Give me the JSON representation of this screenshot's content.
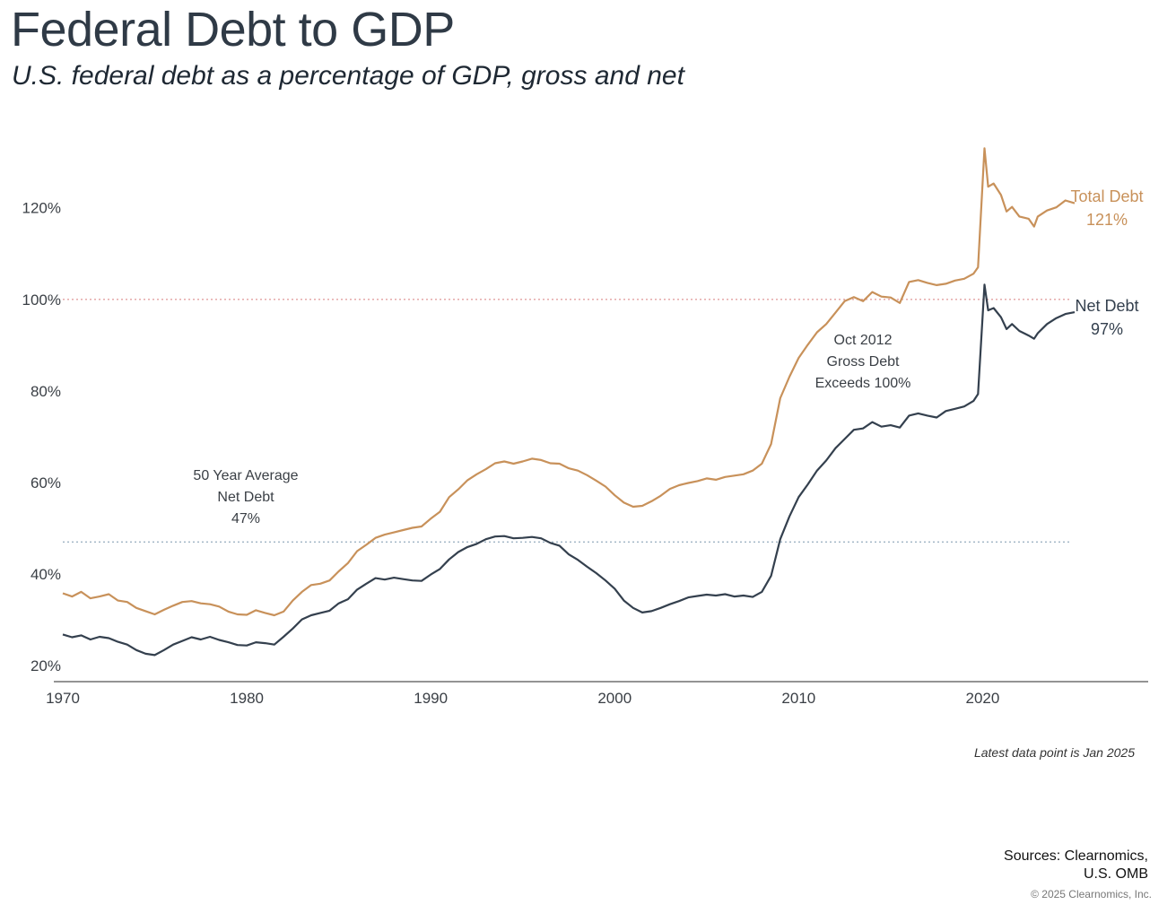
{
  "title": "Federal Debt to GDP",
  "subtitle": "U.S. federal debt as a percentage of GDP, gross and net",
  "note": "Latest data point is Jan 2025",
  "sources_line1": "Sources: Clearnomics,",
  "sources_line2": "U.S. OMB",
  "copyright": "© 2025 Clearnomics, Inc.",
  "colors": {
    "total": "#c8915a",
    "net": "#34404e",
    "ref_100": "#e3a0a0",
    "ref_avg": "#9fb3c4",
    "axis": "#555555"
  },
  "chart_data": {
    "type": "line",
    "xlim": [
      1970,
      2029
    ],
    "ylim": [
      16.5,
      136
    ],
    "x_ticks": [
      1970,
      1980,
      1990,
      2000,
      2010,
      2020
    ],
    "y_ticks": [
      20,
      40,
      60,
      80,
      100,
      120
    ],
    "y_tick_labels": [
      "20%",
      "40%",
      "60%",
      "80%",
      "100%",
      "120%"
    ],
    "reference_lines": [
      {
        "y": 100,
        "style": "dotted",
        "color": "#e3a0a0"
      },
      {
        "y": 47,
        "style": "dotted",
        "color": "#9fb3c4"
      }
    ],
    "series": [
      {
        "name": "Total Debt",
        "end_label": "121%",
        "color": "#c8915a",
        "points": [
          [
            1970,
            35.8
          ],
          [
            1970.5,
            35.1
          ],
          [
            1971,
            36.1
          ],
          [
            1971.5,
            34.7
          ],
          [
            1972,
            35.1
          ],
          [
            1972.5,
            35.6
          ],
          [
            1973,
            34.2
          ],
          [
            1973.5,
            33.9
          ],
          [
            1974,
            32.6
          ],
          [
            1974.5,
            31.9
          ],
          [
            1975,
            31.2
          ],
          [
            1975.5,
            32.2
          ],
          [
            1976,
            33.1
          ],
          [
            1976.5,
            33.9
          ],
          [
            1977,
            34.1
          ],
          [
            1977.5,
            33.6
          ],
          [
            1978,
            33.4
          ],
          [
            1978.5,
            32.9
          ],
          [
            1979,
            31.8
          ],
          [
            1979.5,
            31.2
          ],
          [
            1980,
            31.1
          ],
          [
            1980.5,
            32.1
          ],
          [
            1981,
            31.5
          ],
          [
            1981.5,
            31.0
          ],
          [
            1982,
            31.8
          ],
          [
            1982.5,
            34.2
          ],
          [
            1983,
            36.1
          ],
          [
            1983.5,
            37.6
          ],
          [
            1984,
            37.9
          ],
          [
            1984.5,
            38.6
          ],
          [
            1985,
            40.6
          ],
          [
            1985.5,
            42.4
          ],
          [
            1986,
            45.0
          ],
          [
            1986.5,
            46.4
          ],
          [
            1987,
            47.9
          ],
          [
            1987.5,
            48.6
          ],
          [
            1988,
            49.1
          ],
          [
            1988.5,
            49.6
          ],
          [
            1989,
            50.1
          ],
          [
            1989.5,
            50.4
          ],
          [
            1990,
            52.1
          ],
          [
            1990.5,
            53.6
          ],
          [
            1991,
            56.8
          ],
          [
            1991.5,
            58.5
          ],
          [
            1992,
            60.5
          ],
          [
            1992.5,
            61.8
          ],
          [
            1993,
            62.9
          ],
          [
            1993.5,
            64.2
          ],
          [
            1994,
            64.6
          ],
          [
            1994.5,
            64.1
          ],
          [
            1995,
            64.6
          ],
          [
            1995.5,
            65.2
          ],
          [
            1996,
            64.9
          ],
          [
            1996.5,
            64.2
          ],
          [
            1997,
            64.1
          ],
          [
            1997.5,
            63.1
          ],
          [
            1998,
            62.6
          ],
          [
            1998.5,
            61.6
          ],
          [
            1999,
            60.4
          ],
          [
            1999.5,
            59.1
          ],
          [
            2000,
            57.2
          ],
          [
            2000.5,
            55.6
          ],
          [
            2001,
            54.7
          ],
          [
            2001.5,
            54.9
          ],
          [
            2002,
            55.9
          ],
          [
            2002.5,
            57.1
          ],
          [
            2003,
            58.6
          ],
          [
            2003.5,
            59.4
          ],
          [
            2004,
            59.9
          ],
          [
            2004.5,
            60.3
          ],
          [
            2005,
            60.9
          ],
          [
            2005.5,
            60.6
          ],
          [
            2006,
            61.2
          ],
          [
            2006.5,
            61.5
          ],
          [
            2007,
            61.8
          ],
          [
            2007.5,
            62.6
          ],
          [
            2008,
            64.1
          ],
          [
            2008.5,
            68.4
          ],
          [
            2009,
            78.4
          ],
          [
            2009.5,
            83.1
          ],
          [
            2010,
            87.2
          ],
          [
            2010.5,
            90.1
          ],
          [
            2011,
            92.8
          ],
          [
            2011.5,
            94.6
          ],
          [
            2012,
            97.1
          ],
          [
            2012.5,
            99.6
          ],
          [
            2013,
            100.5
          ],
          [
            2013.5,
            99.6
          ],
          [
            2014,
            101.6
          ],
          [
            2014.5,
            100.6
          ],
          [
            2015,
            100.4
          ],
          [
            2015.5,
            99.2
          ],
          [
            2016,
            103.8
          ],
          [
            2016.5,
            104.2
          ],
          [
            2017,
            103.6
          ],
          [
            2017.5,
            103.1
          ],
          [
            2018,
            103.4
          ],
          [
            2018.5,
            104.1
          ],
          [
            2019,
            104.5
          ],
          [
            2019.5,
            105.6
          ],
          [
            2019.75,
            107.0
          ],
          [
            2020.1,
            133.0
          ],
          [
            2020.3,
            124.6
          ],
          [
            2020.6,
            125.3
          ],
          [
            2021,
            122.8
          ],
          [
            2021.3,
            119.2
          ],
          [
            2021.6,
            120.2
          ],
          [
            2022,
            118.1
          ],
          [
            2022.5,
            117.6
          ],
          [
            2022.8,
            115.9
          ],
          [
            2023,
            118.1
          ],
          [
            2023.5,
            119.4
          ],
          [
            2024,
            120.1
          ],
          [
            2024.5,
            121.6
          ],
          [
            2025,
            121.0
          ]
        ]
      },
      {
        "name": "Net Debt",
        "end_label": "97%",
        "color": "#34404e",
        "points": [
          [
            1970,
            26.8
          ],
          [
            1970.5,
            26.2
          ],
          [
            1971,
            26.6
          ],
          [
            1971.5,
            25.7
          ],
          [
            1972,
            26.3
          ],
          [
            1972.5,
            26.0
          ],
          [
            1973,
            25.2
          ],
          [
            1973.5,
            24.6
          ],
          [
            1974,
            23.4
          ],
          [
            1974.5,
            22.6
          ],
          [
            1975,
            22.3
          ],
          [
            1975.5,
            23.4
          ],
          [
            1976,
            24.6
          ],
          [
            1976.5,
            25.4
          ],
          [
            1977,
            26.2
          ],
          [
            1977.5,
            25.7
          ],
          [
            1978,
            26.3
          ],
          [
            1978.5,
            25.6
          ],
          [
            1979,
            25.1
          ],
          [
            1979.5,
            24.5
          ],
          [
            1980,
            24.4
          ],
          [
            1980.5,
            25.1
          ],
          [
            1981,
            24.9
          ],
          [
            1981.5,
            24.6
          ],
          [
            1982,
            26.3
          ],
          [
            1982.5,
            28.1
          ],
          [
            1983,
            30.1
          ],
          [
            1983.5,
            31.0
          ],
          [
            1984,
            31.5
          ],
          [
            1984.5,
            32.0
          ],
          [
            1985,
            33.6
          ],
          [
            1985.5,
            34.5
          ],
          [
            1986,
            36.6
          ],
          [
            1986.5,
            37.9
          ],
          [
            1987,
            39.1
          ],
          [
            1987.5,
            38.8
          ],
          [
            1988,
            39.2
          ],
          [
            1988.5,
            38.9
          ],
          [
            1989,
            38.6
          ],
          [
            1989.5,
            38.5
          ],
          [
            1990,
            39.9
          ],
          [
            1990.5,
            41.1
          ],
          [
            1991,
            43.2
          ],
          [
            1991.5,
            44.8
          ],
          [
            1992,
            45.9
          ],
          [
            1992.5,
            46.6
          ],
          [
            1993,
            47.6
          ],
          [
            1993.5,
            48.2
          ],
          [
            1994,
            48.3
          ],
          [
            1994.5,
            47.8
          ],
          [
            1995,
            47.9
          ],
          [
            1995.5,
            48.1
          ],
          [
            1996,
            47.8
          ],
          [
            1996.5,
            46.8
          ],
          [
            1997,
            46.2
          ],
          [
            1997.5,
            44.3
          ],
          [
            1998,
            43.1
          ],
          [
            1998.5,
            41.6
          ],
          [
            1999,
            40.2
          ],
          [
            1999.5,
            38.6
          ],
          [
            2000,
            36.8
          ],
          [
            2000.5,
            34.2
          ],
          [
            2001,
            32.6
          ],
          [
            2001.5,
            31.6
          ],
          [
            2002,
            31.9
          ],
          [
            2002.5,
            32.6
          ],
          [
            2003,
            33.4
          ],
          [
            2003.5,
            34.1
          ],
          [
            2004,
            34.9
          ],
          [
            2004.5,
            35.2
          ],
          [
            2005,
            35.5
          ],
          [
            2005.5,
            35.3
          ],
          [
            2006,
            35.6
          ],
          [
            2006.5,
            35.1
          ],
          [
            2007,
            35.3
          ],
          [
            2007.5,
            35.0
          ],
          [
            2008,
            36.1
          ],
          [
            2008.5,
            39.6
          ],
          [
            2009,
            47.6
          ],
          [
            2009.5,
            52.6
          ],
          [
            2010,
            56.8
          ],
          [
            2010.5,
            59.6
          ],
          [
            2011,
            62.6
          ],
          [
            2011.5,
            64.8
          ],
          [
            2012,
            67.5
          ],
          [
            2012.5,
            69.5
          ],
          [
            2013,
            71.5
          ],
          [
            2013.5,
            71.8
          ],
          [
            2014,
            73.2
          ],
          [
            2014.5,
            72.2
          ],
          [
            2015,
            72.5
          ],
          [
            2015.5,
            72.0
          ],
          [
            2016,
            74.6
          ],
          [
            2016.5,
            75.1
          ],
          [
            2017,
            74.6
          ],
          [
            2017.5,
            74.2
          ],
          [
            2018,
            75.6
          ],
          [
            2018.5,
            76.1
          ],
          [
            2019,
            76.6
          ],
          [
            2019.5,
            77.8
          ],
          [
            2019.75,
            79.3
          ],
          [
            2020.1,
            103.2
          ],
          [
            2020.3,
            97.6
          ],
          [
            2020.6,
            98.1
          ],
          [
            2021,
            96.1
          ],
          [
            2021.3,
            93.5
          ],
          [
            2021.6,
            94.6
          ],
          [
            2022,
            93.1
          ],
          [
            2022.5,
            92.1
          ],
          [
            2022.8,
            91.4
          ],
          [
            2023,
            92.6
          ],
          [
            2023.5,
            94.6
          ],
          [
            2024,
            95.9
          ],
          [
            2024.5,
            96.8
          ],
          [
            2025,
            97.2
          ]
        ]
      }
    ],
    "annotations": [
      {
        "id": "avg",
        "lines": [
          "50 Year Average",
          "Net Debt",
          "47%"
        ]
      },
      {
        "id": "oct2012",
        "lines": [
          "Oct 2012",
          "Gross Debt",
          "Exceeds 100%"
        ]
      }
    ]
  }
}
